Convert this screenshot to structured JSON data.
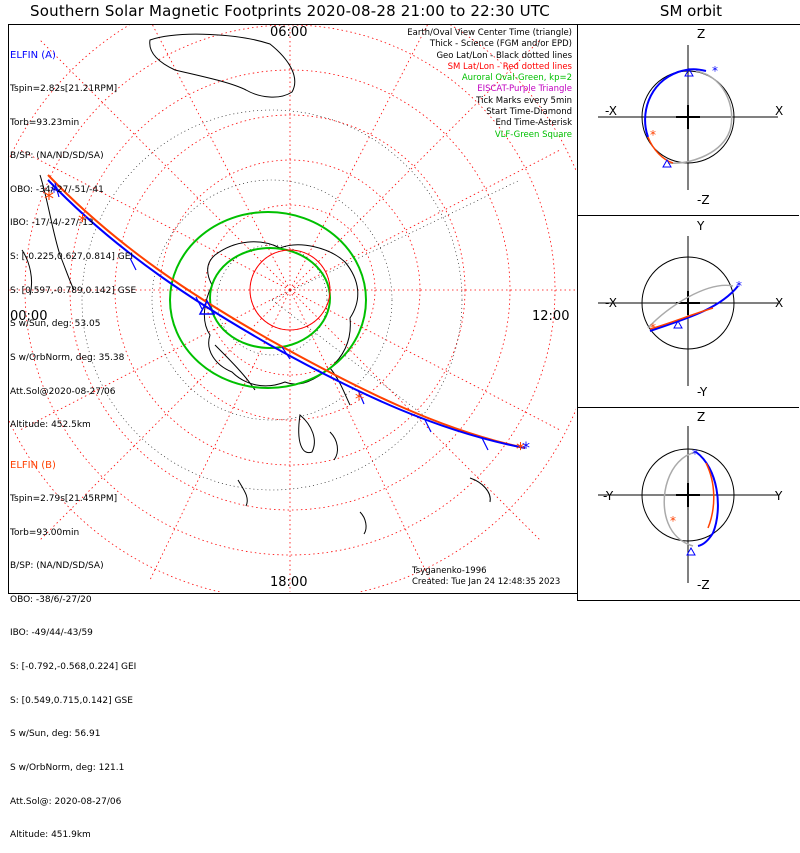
{
  "title": "Southern Solar Magnetic Footprints 2020-08-28 21:00 to 22:30 UTC",
  "sm_title": "SM orbit",
  "time_labels": {
    "top": "06:00",
    "left": "00:00",
    "right": "12:00",
    "bottom": "18:00"
  },
  "elfin_a": {
    "name": "ELFIN (A)",
    "color": "#0000ff",
    "lines": [
      "Tspin=2.82s[21.21RPM]",
      "Torb=93.23min",
      "B/SP: (NA/ND/SD/SA)",
      "OBO: -34/-27/-51/-41",
      "IBO: -17/-4/-27/-13",
      "S: [-0.225,0.627,0.814] GEI",
      "S: [0.597,-0.789,0.142] GSE",
      "S w/Sun, deg: 53.05",
      "S w/OrbNorm, deg: 35.38",
      "Att.Sol@2020-08-27/06",
      "Altitude: 452.5km"
    ]
  },
  "elfin_b": {
    "name": "ELFIN (B)",
    "color": "#ff4000",
    "lines": [
      "Tspin=2.79s[21.45RPM]",
      "Torb=93.00min",
      "B/SP: (NA/ND/SD/SA)",
      "OBO: -38/6/-27/20",
      "IBO: -49/44/-43/59",
      "S: [-0.792,-0.568,0.224] GEI",
      "S: [0.549,0.715,0.142] GSE",
      "S w/Sun, deg: 56.91",
      "S w/OrbNorm, deg: 121.1",
      "Att.Sol@: 2020-08-27/06",
      "Altitude: 451.9km"
    ]
  },
  "legend": [
    {
      "text": "Earth/Oval View Center Time (triangle)",
      "color": "#000000"
    },
    {
      "text": "Thick - Science (FGM and/or EPD)",
      "color": "#000000"
    },
    {
      "text": "Geo Lat/Lon - Black dotted lines",
      "color": "#000000"
    },
    {
      "text": "SM Lat/Lon - Red dotted lines",
      "color": "#ff0000"
    },
    {
      "text": "Auroral Oval-Green, kp=2",
      "color": "#00c000"
    },
    {
      "text": "EISCAT-Purple Triangle",
      "color": "#c000c0"
    },
    {
      "text": "Tick Marks every 5min",
      "color": "#000000"
    },
    {
      "text": "Start Time-Diamond",
      "color": "#000000"
    },
    {
      "text": "End Time-Asterisk",
      "color": "#000000"
    },
    {
      "text": "VLF-Green Square",
      "color": "#00c000"
    }
  ],
  "footer": {
    "credit": "Tsyganenko-1996",
    "created": "Created: Tue Jan 24 12:48:35 2023"
  },
  "sm_panels": [
    {
      "top": "-Z",
      "bottom": "-Z",
      "left": "-X",
      "right": "X",
      "top_label": "Z"
    },
    {
      "top_label": "Y",
      "bottom": "-Y",
      "left": "-X",
      "right": "X"
    },
    {
      "top_label": "Z",
      "bottom": "-Z",
      "left": "-Y",
      "right": "Y"
    }
  ]
}
